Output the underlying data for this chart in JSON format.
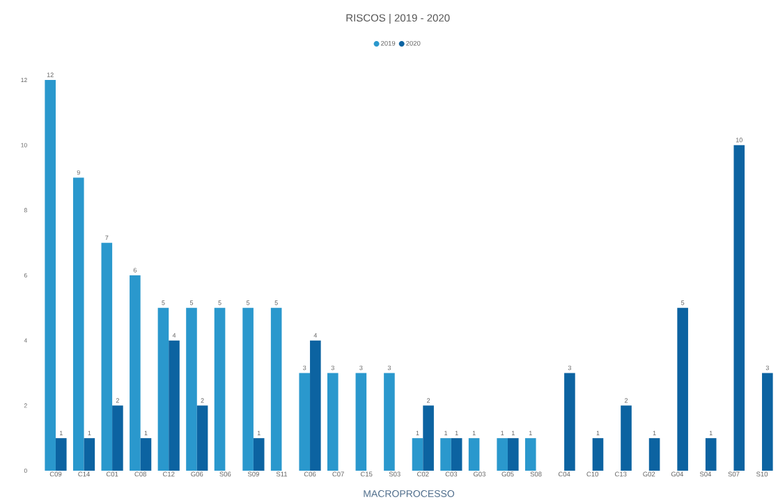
{
  "chart_data": {
    "type": "bar",
    "title": "RISCOS | 2019 - 2020",
    "xlabel": "MACROPROCESSO",
    "categories": [
      "C09",
      "C14",
      "C01",
      "C08",
      "C12",
      "G06",
      "S06",
      "S09",
      "S11",
      "C06",
      "C07",
      "C15",
      "S03",
      "C02",
      "C03",
      "G03",
      "G05",
      "S08",
      "C04",
      "C10",
      "C13",
      "G02",
      "G04",
      "S04",
      "S07",
      "S10"
    ],
    "series": [
      {
        "name": "2019",
        "color": "#2a98cd",
        "values": [
          12,
          9,
          7,
          6,
          5,
          5,
          5,
          5,
          5,
          3,
          3,
          3,
          3,
          1,
          1,
          1,
          1,
          1,
          null,
          null,
          null,
          null,
          null,
          null,
          null,
          null
        ]
      },
      {
        "name": "2020",
        "color": "#0c63a1",
        "values": [
          1,
          1,
          2,
          1,
          4,
          2,
          null,
          1,
          null,
          4,
          null,
          null,
          null,
          2,
          1,
          null,
          1,
          null,
          3,
          1,
          2,
          1,
          5,
          1,
          10,
          3
        ]
      }
    ],
    "ylim": [
      0,
      12
    ],
    "yticks": [
      0,
      2,
      4,
      6,
      8,
      10,
      12
    ],
    "data_labels": true,
    "legend": "top"
  }
}
